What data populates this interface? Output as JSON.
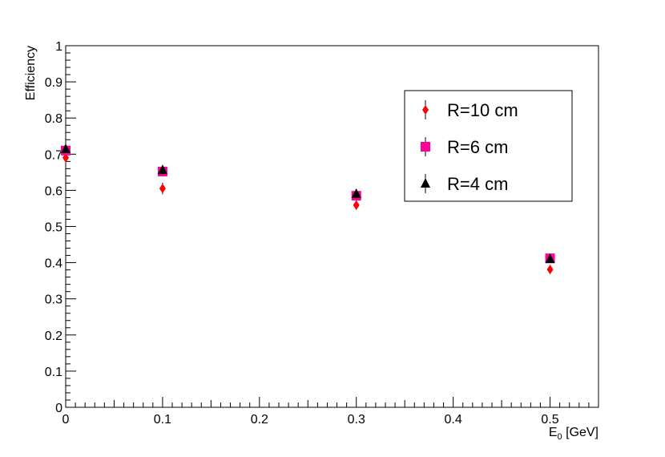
{
  "chart_data": {
    "type": "scatter",
    "ylabel": "Efficiency",
    "xlabel_parts": [
      "E",
      "0",
      " [GeV]"
    ],
    "xlim": [
      0,
      0.55
    ],
    "ylim": [
      0,
      1
    ],
    "xticks": [
      0,
      0.1,
      0.2,
      0.3,
      0.4,
      0.5
    ],
    "yticks": [
      0,
      0.1,
      0.2,
      0.3,
      0.4,
      0.5,
      0.6,
      0.7,
      0.8,
      0.9,
      1
    ],
    "legend": "upper right",
    "series": [
      {
        "name": "R=10 cm",
        "color": "#ff0000",
        "marker": "diamond",
        "x": [
          0,
          0.1,
          0.3,
          0.5
        ],
        "values": [
          0.69,
          0.605,
          0.559,
          0.381
        ],
        "errors": [
          0.01,
          0.016,
          0.013,
          0.012
        ]
      },
      {
        "name": "R=6 cm",
        "color": "#ff0099",
        "marker": "square",
        "x": [
          0,
          0.1,
          0.3,
          0.5
        ],
        "values": [
          0.71,
          0.652,
          0.585,
          0.412
        ],
        "errors": [
          0.01,
          0.01,
          0.01,
          0.01
        ]
      },
      {
        "name": "R=4 cm",
        "color": "#000000",
        "marker": "triangle",
        "x": [
          0,
          0.1,
          0.3,
          0.5
        ],
        "values": [
          0.714,
          0.656,
          0.59,
          0.41
        ],
        "errors": [
          0.01,
          0.01,
          0.012,
          0.01
        ]
      }
    ]
  }
}
